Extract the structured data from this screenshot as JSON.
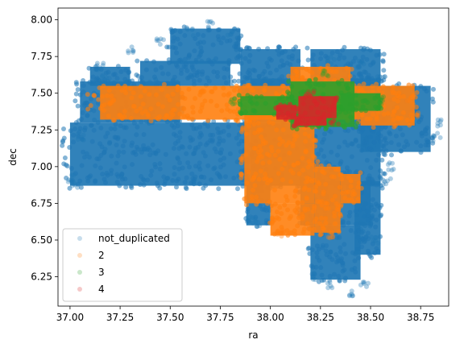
{
  "chart_data": {
    "type": "scatter",
    "title": "",
    "xlabel": "ra",
    "ylabel": "dec",
    "xlim": [
      36.94,
      38.89
    ],
    "ylim": [
      6.05,
      8.08
    ],
    "xticks": [
      37.0,
      37.25,
      37.5,
      37.75,
      38.0,
      38.25,
      38.5,
      38.75
    ],
    "xtick_labels": [
      "37.00",
      "37.25",
      "37.50",
      "37.75",
      "38.00",
      "38.25",
      "38.50",
      "38.75"
    ],
    "yticks": [
      6.25,
      6.5,
      6.75,
      7.0,
      7.25,
      7.5,
      7.75,
      8.0
    ],
    "ytick_labels": [
      "6.25",
      "6.50",
      "6.75",
      "7.00",
      "7.25",
      "7.50",
      "7.75",
      "8.00"
    ],
    "grid": false,
    "legend_position": "lower-left",
    "series": [
      {
        "name": "not_duplicated",
        "color": "#1f77b4",
        "regions": [
          {
            "shape": "box",
            "x": [
              37.0,
              37.9
            ],
            "y": [
              6.87,
              7.3
            ]
          },
          {
            "shape": "box",
            "x": [
              37.05,
              37.55
            ],
            "y": [
              7.3,
              7.58
            ]
          },
          {
            "shape": "box",
            "x": [
              37.1,
              37.3
            ],
            "y": [
              7.55,
              7.68
            ]
          },
          {
            "shape": "box",
            "x": [
              37.35,
              37.8
            ],
            "y": [
              7.55,
              7.72
            ]
          },
          {
            "shape": "box",
            "x": [
              37.5,
              37.85
            ],
            "y": [
              7.7,
              7.94
            ]
          },
          {
            "shape": "box",
            "x": [
              37.85,
              38.15
            ],
            "y": [
              7.45,
              7.8
            ]
          },
          {
            "shape": "box",
            "x": [
              38.2,
              38.55
            ],
            "y": [
              7.55,
              7.8
            ]
          },
          {
            "shape": "box",
            "x": [
              37.9,
              38.55
            ],
            "y": [
              7.3,
              7.6
            ]
          },
          {
            "shape": "box",
            "x": [
              38.45,
              38.8
            ],
            "y": [
              7.1,
              7.55
            ]
          },
          {
            "shape": "box",
            "x": [
              37.9,
              38.55
            ],
            "y": [
              6.87,
              7.3
            ]
          },
          {
            "shape": "box",
            "x": [
              37.88,
              38.0
            ],
            "y": [
              6.6,
              6.9
            ]
          },
          {
            "shape": "box",
            "x": [
              38.15,
              38.5
            ],
            "y": [
              6.6,
              6.9
            ]
          },
          {
            "shape": "box",
            "x": [
              38.2,
              38.45
            ],
            "y": [
              6.23,
              6.6
            ]
          },
          {
            "shape": "box",
            "x": [
              38.42,
              38.55
            ],
            "y": [
              6.4,
              6.9
            ]
          }
        ],
        "points": [
          [
            37.02,
            6.88
          ],
          [
            37.01,
            6.92
          ],
          [
            37.05,
            7.2
          ],
          [
            37.9,
            7.06
          ],
          [
            37.18,
            7.6
          ],
          [
            37.15,
            7.68
          ],
          [
            37.6,
            7.92
          ],
          [
            37.7,
            7.97
          ],
          [
            37.8,
            7.92
          ],
          [
            37.45,
            7.85
          ],
          [
            37.3,
            7.8
          ],
          [
            38.3,
            7.72
          ],
          [
            38.45,
            7.7
          ],
          [
            38.55,
            7.6
          ],
          [
            38.85,
            7.3
          ],
          [
            38.83,
            7.2
          ],
          [
            38.22,
            6.25
          ],
          [
            38.3,
            6.2
          ],
          [
            38.4,
            6.14
          ],
          [
            38.47,
            6.2
          ],
          [
            38.52,
            6.5
          ],
          [
            38.58,
            6.9
          ],
          [
            38.6,
            7.0
          ],
          [
            37.9,
            6.65
          ],
          [
            37.93,
            6.62
          ]
        ],
        "note_alpha": 0.2
      },
      {
        "name": "2",
        "color": "#ff7f0e",
        "regions": [
          {
            "shape": "box",
            "x": [
              37.15,
              38.45
            ],
            "y": [
              7.32,
              7.55
            ]
          },
          {
            "shape": "box",
            "x": [
              38.1,
              38.4
            ],
            "y": [
              7.5,
              7.68
            ]
          },
          {
            "shape": "box",
            "x": [
              38.45,
              38.72
            ],
            "y": [
              7.28,
              7.55
            ]
          },
          {
            "shape": "box",
            "x": [
              37.87,
              38.22
            ],
            "y": [
              6.75,
              7.35
            ]
          },
          {
            "shape": "box",
            "x": [
              38.0,
              38.22
            ],
            "y": [
              6.53,
              6.75
            ]
          },
          {
            "shape": "box",
            "x": [
              38.22,
              38.35
            ],
            "y": [
              6.55,
              7.0
            ]
          },
          {
            "shape": "box",
            "x": [
              38.35,
              38.45
            ],
            "y": [
              6.75,
              6.95
            ]
          }
        ],
        "points": [
          [
            37.2,
            7.45
          ],
          [
            38.7,
            7.45
          ],
          [
            38.72,
            7.35
          ],
          [
            38.05,
            6.55
          ],
          [
            38.3,
            6.53
          ]
        ]
      },
      {
        "name": "3",
        "color": "#2ca02c",
        "regions": [
          {
            "shape": "box",
            "x": [
              37.85,
              38.12
            ],
            "y": [
              7.35,
              7.48
            ]
          },
          {
            "shape": "box",
            "x": [
              38.1,
              38.42
            ],
            "y": [
              7.27,
              7.58
            ]
          },
          {
            "shape": "box",
            "x": [
              38.35,
              38.55
            ],
            "y": [
              7.38,
              7.5
            ]
          }
        ],
        "points": [
          [
            37.82,
            7.44
          ],
          [
            38.27,
            7.63
          ],
          [
            38.55,
            7.45
          ]
        ]
      },
      {
        "name": "4",
        "color": "#d62728",
        "regions": [
          {
            "shape": "box",
            "x": [
              38.03,
              38.13
            ],
            "y": [
              7.32,
              7.42
            ]
          },
          {
            "shape": "box",
            "x": [
              38.14,
              38.33
            ],
            "y": [
              7.33,
              7.48
            ]
          },
          {
            "shape": "box",
            "x": [
              38.12,
              38.28
            ],
            "y": [
              7.28,
              7.34
            ]
          }
        ],
        "points": [
          [
            38.2,
            7.5
          ],
          [
            38.15,
            7.3
          ],
          [
            38.32,
            7.3
          ]
        ]
      }
    ]
  }
}
